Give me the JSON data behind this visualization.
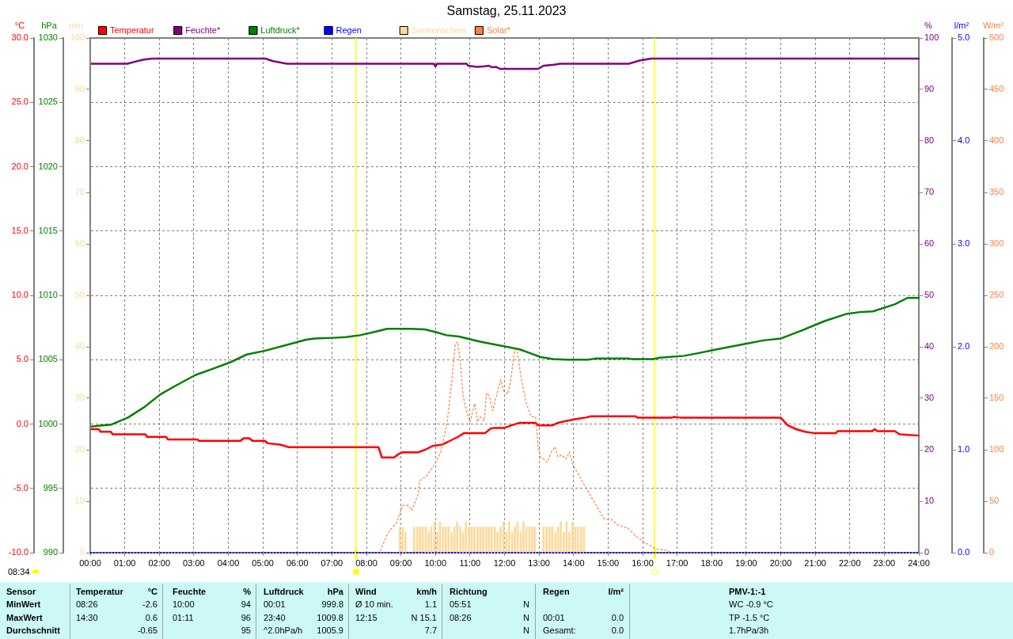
{
  "chart_data": [
    {
      "type": "line",
      "title": "Samstag, 25.11.2023",
      "xlim": [
        0,
        24
      ],
      "xticks": [
        {
          "value": 0,
          "label": "00:00"
        },
        {
          "value": 1,
          "label": "01:00"
        },
        {
          "value": 2,
          "label": "02:00"
        },
        {
          "value": 3,
          "label": "03:00"
        },
        {
          "value": 4,
          "label": "04:00"
        },
        {
          "value": 5,
          "label": "05:00"
        },
        {
          "value": 6,
          "label": "06:00"
        },
        {
          "value": 7,
          "label": "07:00"
        },
        {
          "value": 8,
          "label": "08:00"
        },
        {
          "value": 9,
          "label": "09:00"
        },
        {
          "value": 10,
          "label": "10:00"
        },
        {
          "value": 11,
          "label": "11:00"
        },
        {
          "value": 12,
          "label": "12:00"
        },
        {
          "value": 13,
          "label": "13:00"
        },
        {
          "value": 14,
          "label": "14:00"
        },
        {
          "value": 15,
          "label": "15:00"
        },
        {
          "value": 16,
          "label": "16:00"
        },
        {
          "value": 17,
          "label": "17:00"
        },
        {
          "value": 18,
          "label": "18:00"
        },
        {
          "value": 19,
          "label": "19:00"
        },
        {
          "value": 20,
          "label": "20:00"
        },
        {
          "value": 21,
          "label": "21:00"
        },
        {
          "value": 22,
          "label": "22:00"
        },
        {
          "value": 23,
          "label": "23:00"
        },
        {
          "value": 24,
          "label": "24:00"
        }
      ],
      "ylabel": "°C",
      "ylim": [
        -10,
        30
      ],
      "yticks": [
        {
          "value": -10,
          "label": "-10.0"
        },
        {
          "value": -5,
          "label": "-5.0"
        },
        {
          "value": 0,
          "label": "0.0"
        },
        {
          "value": 5,
          "label": "5.0"
        },
        {
          "value": 10,
          "label": "10.0"
        },
        {
          "value": 15,
          "label": "15.0"
        },
        {
          "value": 20,
          "label": "20.0"
        },
        {
          "value": 25,
          "label": "25.0"
        },
        {
          "value": 30,
          "label": "30.0"
        }
      ],
      "y2label": "%",
      "y2lim": [
        0,
        100
      ],
      "y2ticks": [
        0,
        10,
        20,
        30,
        40,
        50,
        60,
        70,
        80,
        90,
        100
      ],
      "y3label": "hPa",
      "y3lim": [
        990,
        1030
      ],
      "y3ticks": [
        990,
        995,
        1000,
        1005,
        1010,
        1015,
        1020,
        1025,
        1030
      ],
      "grid": true,
      "legend": "top",
      "series": [
        {
          "name": "Temperatur",
          "color": "#ff0000",
          "x": [
            0,
            0.25,
            0.3,
            0.6,
            0.65,
            1.6,
            1.65,
            2.2,
            2.25,
            3.1,
            3.15,
            4.35,
            4.45,
            4.6,
            4.7,
            5.05,
            5.15,
            5.5,
            5.75,
            8.35,
            8.45,
            8.8,
            8.95,
            9.05,
            9.5,
            9.7,
            9.92,
            10.19,
            10.35,
            10.5,
            10.65,
            10.83,
            11.44,
            11.6,
            11.7,
            12.0,
            12.2,
            12.44,
            12.9,
            12.97,
            13.39,
            13.55,
            13.8,
            14.1,
            14.35,
            14.5,
            15.8,
            15.85,
            16.85,
            16.9,
            17.1,
            20.0,
            20.2,
            20.45,
            20.7,
            20.95,
            21.6,
            21.65,
            22.65,
            22.72,
            22.8,
            23.3,
            23.45,
            24
          ],
          "values": [
            -0.4,
            -0.4,
            -0.6,
            -0.6,
            -0.8,
            -0.8,
            -1.0,
            -1.0,
            -1.2,
            -1.2,
            -1.3,
            -1.3,
            -1.1,
            -1.1,
            -1.3,
            -1.3,
            -1.5,
            -1.6,
            -1.8,
            -1.8,
            -2.6,
            -2.6,
            -2.3,
            -2.2,
            -2.2,
            -2.0,
            -1.7,
            -1.6,
            -1.4,
            -1.2,
            -1.0,
            -0.7,
            -0.7,
            -0.35,
            -0.3,
            -0.3,
            -0.1,
            0.1,
            0.1,
            -0.1,
            -0.1,
            0.1,
            0.25,
            0.4,
            0.5,
            0.6,
            0.6,
            0.5,
            0.5,
            0.55,
            0.5,
            0.5,
            -0.1,
            -0.4,
            -0.6,
            -0.7,
            -0.7,
            -0.55,
            -0.55,
            -0.4,
            -0.55,
            -0.55,
            -0.8,
            -0.9
          ]
        },
        {
          "name": "Feuchte*",
          "color": "#800080",
          "axis": "y2",
          "x": [
            0,
            1.08,
            1.3,
            1.55,
            1.79,
            5.07,
            5.3,
            5.7,
            9.95,
            10.0,
            10.05,
            10.9,
            10.95,
            11.2,
            11.42,
            11.55,
            11.65,
            11.75,
            11.87,
            12.97,
            13.13,
            13.43,
            13.6,
            15.6,
            15.9,
            16.25,
            24
          ],
          "values": [
            95,
            95,
            95.4,
            95.8,
            96,
            96,
            95.5,
            95,
            95,
            94.5,
            95,
            95,
            94.6,
            94.4,
            94.5,
            94.6,
            94.3,
            94.4,
            94,
            94,
            94.6,
            94.8,
            95,
            95,
            95.6,
            96,
            96
          ]
        },
        {
          "name": "Luftdruck*",
          "color": "#008000",
          "axis": "y3",
          "x": [
            0,
            0.6,
            1.09,
            1.56,
            2.03,
            2.49,
            3.04,
            3.51,
            4.06,
            4.53,
            5.07,
            5.7,
            6.25,
            6.5,
            7.03,
            7.4,
            7.81,
            8.3,
            8.6,
            9.28,
            9.69,
            10.0,
            10.32,
            10.68,
            11.29,
            11.98,
            12.44,
            12.75,
            13.05,
            13.4,
            13.8,
            14.43,
            14.65,
            15.57,
            15.7,
            16.3,
            16.5,
            17.2,
            17.6,
            18.14,
            18.92,
            19.5,
            20.01,
            20.64,
            21.27,
            21.89,
            22.3,
            22.67,
            23.3,
            23.67,
            24
          ],
          "values": [
            999.8,
            999.95,
            1000.5,
            1001.3,
            1002.3,
            1003.0,
            1003.8,
            1004.25,
            1004.8,
            1005.4,
            1005.7,
            1006.15,
            1006.55,
            1006.65,
            1006.7,
            1006.75,
            1006.9,
            1007.2,
            1007.4,
            1007.4,
            1007.35,
            1007.15,
            1006.9,
            1006.8,
            1006.4,
            1006.05,
            1005.8,
            1005.5,
            1005.2,
            1005.05,
            1005.0,
            1005.0,
            1005.1,
            1005.1,
            1005.05,
            1005.05,
            1005.15,
            1005.3,
            1005.5,
            1005.8,
            1006.2,
            1006.5,
            1006.65,
            1007.3,
            1008.0,
            1008.55,
            1008.7,
            1008.75,
            1009.3,
            1009.8,
            1009.8
          ]
        }
      ],
      "ref_lines": [
        {
          "axis": "x",
          "value": 7.7,
          "color": "#ffff00"
        },
        {
          "axis": "x",
          "value": 16.35,
          "color": "#ffff00"
        }
      ],
      "annotations": [
        "08:34",
        "Sensor",
        "Temperatur",
        "°C",
        "Feuchte",
        "%",
        "Luftdruck",
        "hPa",
        "Wind",
        "km/h",
        "Richtung",
        "Regen",
        "l/m²",
        "PMV-1:-1",
        "MinWert",
        "08:26",
        "-2.6",
        "10:00",
        "94",
        "00:01",
        "999.8",
        "Ø 10 min.",
        "1.1",
        "05:51",
        "N",
        "WC -0.9 °C",
        "MaxWert",
        "14:30",
        "0.6",
        "01:11",
        "96",
        "23:40",
        "1009.8",
        "12:15",
        "N 15.1",
        "08:26",
        "N",
        "00:01",
        "0.0",
        "TP -1.5 °C",
        "Durchschnitt",
        "-0.65",
        "95",
        "^2.0hPa/h",
        "1005.9",
        "7.7",
        "N",
        "Gesamt:",
        "0.0",
        "1.7hPa/3h"
      ]
    },
    {
      "type": "line",
      "xlim": [
        0,
        24
      ],
      "tick_labels": "y",
      "ylabel": "min",
      "ylim": [
        0,
        100
      ],
      "yticks": [
        0,
        10,
        20,
        30,
        40,
        50,
        60,
        70,
        80,
        90,
        100
      ],
      "y2label": "l/m²",
      "y2lim": [
        0,
        5
      ],
      "y2ticks": [
        {
          "value": 0,
          "label": "0.0"
        },
        {
          "value": 1,
          "label": "1.0"
        },
        {
          "value": 2,
          "label": "2.0"
        },
        {
          "value": 3,
          "label": "3.0"
        },
        {
          "value": 4,
          "label": "4.0"
        },
        {
          "value": 5,
          "label": "5.0"
        }
      ],
      "y3label": "W/m²",
      "y3lim": [
        0,
        500
      ],
      "y3ticks": [
        0,
        50,
        100,
        150,
        200,
        250,
        300,
        350,
        400,
        450,
        500
      ],
      "legend": "top",
      "series": [
        {
          "name": "Regen",
          "color": "#0000ff",
          "axis": "y2",
          "line_style": "dotted",
          "x": [
            0,
            24
          ],
          "values": [
            0,
            0
          ]
        },
        {
          "name": "Sonnenschein",
          "color": "#fdd99b",
          "type": "bar",
          "x": [
            8.97,
            9.05,
            9.13,
            9.38,
            9.47,
            9.55,
            9.63,
            9.72,
            9.8,
            9.88,
            9.97,
            10.05,
            10.13,
            10.22,
            10.3,
            10.38,
            10.47,
            10.55,
            10.63,
            10.72,
            10.8,
            10.88,
            10.97,
            11.05,
            11.13,
            11.22,
            11.3,
            11.38,
            11.47,
            11.55,
            11.63,
            11.72,
            11.8,
            11.88,
            11.97,
            12.05,
            12.13,
            12.22,
            12.3,
            12.38,
            12.47,
            12.55,
            12.63,
            12.72,
            12.8,
            12.88,
            13.13,
            13.22,
            13.3,
            13.38,
            13.47,
            13.55,
            13.63,
            13.72,
            13.8,
            13.88,
            13.97,
            14.05,
            14.13,
            14.22,
            14.3
          ],
          "values": [
            5,
            5,
            4,
            5,
            5,
            5,
            5,
            5,
            4,
            5,
            6,
            4,
            6,
            5,
            5,
            5,
            4,
            5,
            6,
            5,
            4,
            6,
            5,
            5,
            5,
            5,
            5,
            5,
            5,
            5,
            5,
            5,
            4,
            5,
            6,
            4,
            6,
            4,
            5,
            6,
            4,
            6,
            5,
            5,
            5,
            5,
            5,
            5,
            5,
            5,
            4,
            5,
            6,
            4,
            6,
            4,
            6,
            5,
            5,
            5,
            5
          ]
        },
        {
          "name": "Solar*",
          "color": "#ff8040",
          "axis": "y3",
          "line_style": "dashed",
          "x": [
            8.3,
            8.39,
            8.62,
            8.89,
            9.04,
            9.23,
            9.31,
            9.5,
            9.54,
            9.73,
            9.92,
            10.15,
            10.34,
            10.49,
            10.57,
            10.64,
            10.72,
            10.8,
            10.91,
            11.0,
            11.14,
            11.22,
            11.29,
            11.41,
            11.48,
            11.56,
            11.66,
            11.75,
            11.89,
            11.98,
            12.09,
            12.17,
            12.29,
            12.36,
            12.48,
            12.63,
            12.78,
            12.9,
            12.97,
            13.05,
            13.14,
            13.24,
            13.36,
            13.46,
            13.55,
            13.66,
            13.78,
            13.88,
            13.97,
            14.16,
            14.39,
            14.62,
            14.88,
            15.11,
            15.27,
            15.46,
            15.57,
            15.8,
            16.11,
            16.37,
            16.72,
            16.8
          ],
          "values": [
            0,
            1,
            19,
            30,
            46,
            46,
            41,
            57,
            70,
            74,
            83,
            97,
            127,
            173,
            201,
            205,
            186,
            152,
            137,
            127,
            145,
            127,
            132,
            128,
            155,
            152,
            138,
            150,
            168,
            157,
            154,
            165,
            197,
            197,
            170,
            145,
            132,
            132,
            104,
            92,
            91,
            88,
            98,
            103,
            93,
            95,
            91,
            98,
            86,
            75,
            61,
            48,
            33,
            32,
            27,
            25,
            24,
            16,
            9,
            4,
            2,
            0
          ]
        }
      ]
    }
  ]
}
